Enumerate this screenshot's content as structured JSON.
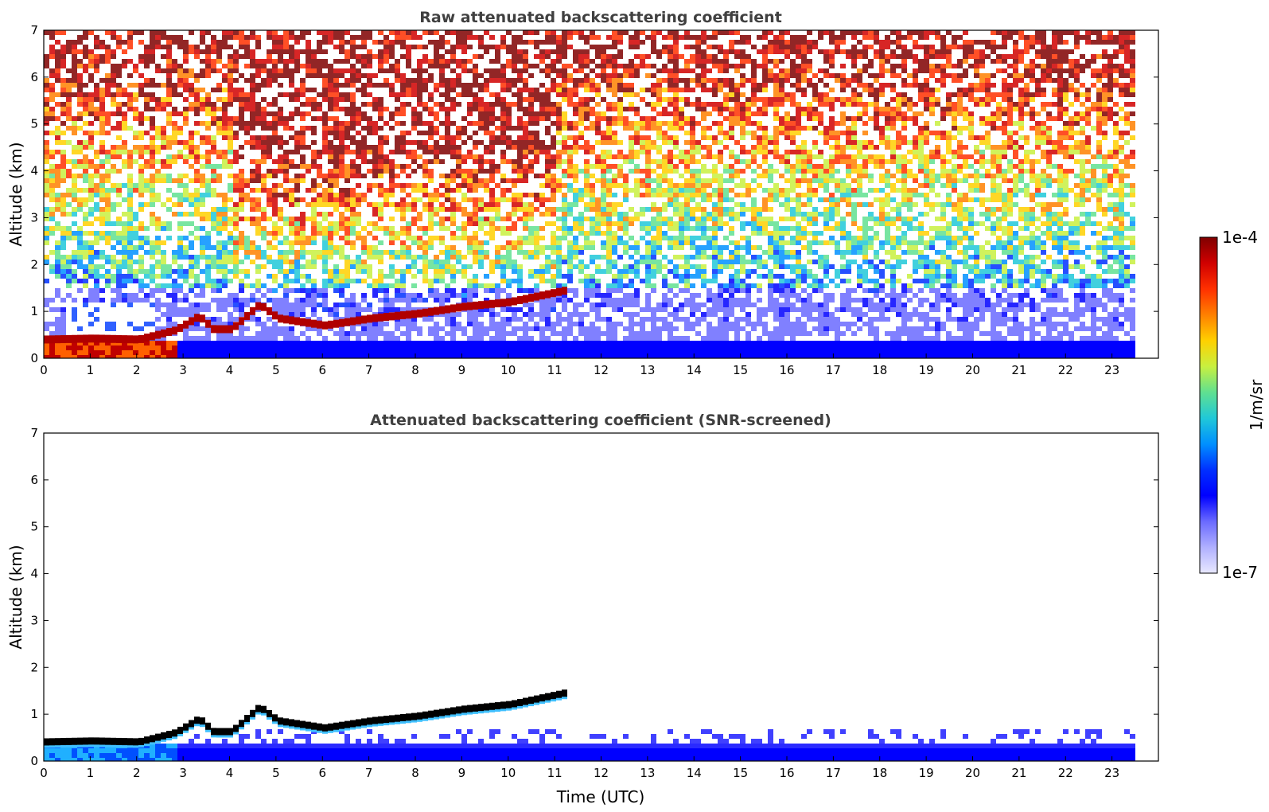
{
  "chart_data": [
    {
      "type": "heatmap",
      "title": "Raw attenuated backscattering coefficient",
      "xlabel": "",
      "ylabel": "Altitude (km)",
      "xlim": [
        0,
        24
      ],
      "ylim": [
        0,
        7
      ],
      "x_ticks": [
        "0",
        "1",
        "2",
        "3",
        "4",
        "5",
        "6",
        "7",
        "8",
        "9",
        "10",
        "11",
        "12",
        "13",
        "14",
        "15",
        "16",
        "17",
        "18",
        "19",
        "20",
        "21",
        "22",
        "23"
      ],
      "y_ticks": [
        "0",
        "1",
        "2",
        "3",
        "4",
        "5",
        "6",
        "7"
      ],
      "data_end_hour": 23.4,
      "aerosol_layer_top_km": [
        {
          "x": 0,
          "y": 0.4
        },
        {
          "x": 1,
          "y": 0.42
        },
        {
          "x": 2,
          "y": 0.4
        },
        {
          "x": 2.8,
          "y": 0.6
        },
        {
          "x": 3.3,
          "y": 0.9
        },
        {
          "x": 3.6,
          "y": 0.62
        },
        {
          "x": 4.0,
          "y": 0.62
        },
        {
          "x": 4.6,
          "y": 1.15
        },
        {
          "x": 5.0,
          "y": 0.85
        },
        {
          "x": 6.0,
          "y": 0.7
        },
        {
          "x": 7.0,
          "y": 0.85
        },
        {
          "x": 8.0,
          "y": 0.95
        },
        {
          "x": 9.0,
          "y": 1.1
        },
        {
          "x": 10.0,
          "y": 1.2
        },
        {
          "x": 11.2,
          "y": 1.45
        }
      ],
      "colorbar": {
        "label": "1/m/sr",
        "min": "1e-7",
        "max": "1e-4",
        "scale": "log"
      }
    },
    {
      "type": "heatmap",
      "title": "Attenuated backscattering coefficient (SNR-screened)",
      "xlabel": "Time (UTC)",
      "ylabel": "Altitude (km)",
      "xlim": [
        0,
        24
      ],
      "ylim": [
        0,
        7
      ],
      "x_ticks": [
        "0",
        "1",
        "2",
        "3",
        "4",
        "5",
        "6",
        "7",
        "8",
        "9",
        "10",
        "11",
        "12",
        "13",
        "14",
        "15",
        "16",
        "17",
        "18",
        "19",
        "20",
        "21",
        "22",
        "23"
      ],
      "y_ticks": [
        "0",
        "1",
        "2",
        "3",
        "4",
        "5",
        "6",
        "7"
      ],
      "data_end_hour": 23.4
    }
  ],
  "colorbar": {
    "label": "1/m/sr",
    "top_label": "1e-4",
    "bottom_label": "1e-7",
    "colors": [
      "#7f0000",
      "#d00000",
      "#ff3000",
      "#ff8000",
      "#ffd000",
      "#c8f040",
      "#60e090",
      "#20c8d8",
      "#0090ff",
      "#0030ff",
      "#0000ff",
      "#6a6aff",
      "#b0b0ff",
      "#e8e8ff"
    ]
  }
}
